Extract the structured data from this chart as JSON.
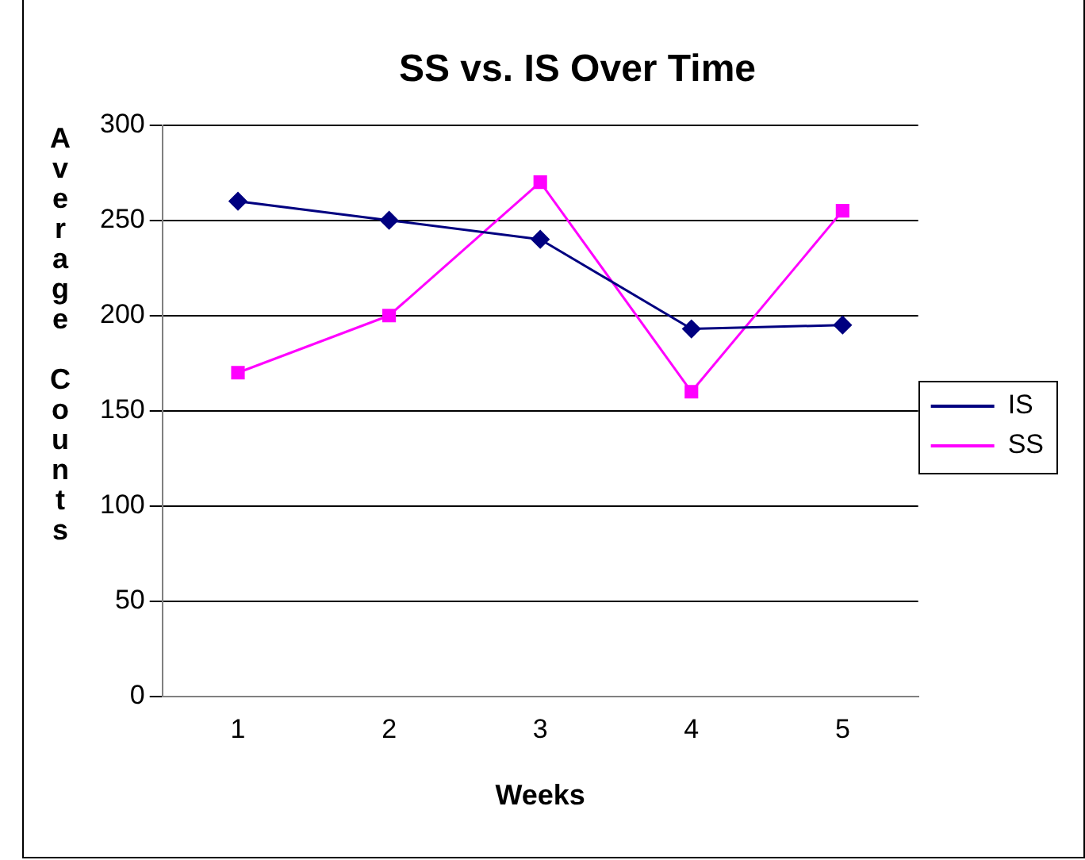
{
  "chart_data": {
    "type": "line",
    "title": "SS vs. IS Over Time",
    "xlabel": "Weeks",
    "ylabel": "Average Counts",
    "categories": [
      "1",
      "2",
      "3",
      "4",
      "5"
    ],
    "series": [
      {
        "name": "IS",
        "color": "#000080",
        "marker": "diamond",
        "values": [
          260,
          250,
          240,
          193,
          195
        ]
      },
      {
        "name": "SS",
        "color": "#ff00ff",
        "marker": "square",
        "values": [
          170,
          200,
          270,
          160,
          255
        ]
      }
    ],
    "ylim": [
      0,
      300
    ],
    "yticks": [
      0,
      50,
      100,
      150,
      200,
      250,
      300
    ],
    "grid": "y",
    "legend": "right",
    "line_style": "solid"
  }
}
